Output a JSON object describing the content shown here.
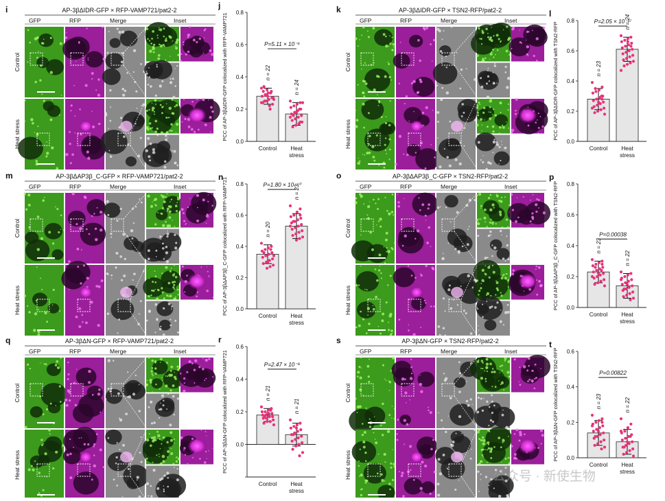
{
  "figure": {
    "panels_micro": [
      {
        "id": "i",
        "letter": "i",
        "title": "AP-3βΔIDR-GFP × RFP-VAMP721/pat2-2",
        "col_labels": [
          "GFP",
          "RFP",
          "Merge",
          "Inset"
        ],
        "row_labels": [
          "Control",
          "Heat stress"
        ],
        "palette": "green"
      },
      {
        "id": "k",
        "letter": "k",
        "title": "AP-3βΔIDR-GFP × TSN2-RFP/pat2-2",
        "col_labels": [
          "GFP",
          "RFP",
          "Merge",
          "Inset"
        ],
        "row_labels": [
          "Control",
          "Heat stress"
        ],
        "palette": "green"
      },
      {
        "id": "m",
        "letter": "m",
        "title": "AP-3βΔAP3β_C-GFP × RFP-VAMP721/pat2-2",
        "col_labels": [
          "GFP",
          "RFP",
          "Merge",
          "Inset"
        ],
        "row_labels": [
          "Control",
          "Heat stress"
        ],
        "palette": "green"
      },
      {
        "id": "o",
        "letter": "o",
        "title": "AP-3βΔAP3β_C-GFP × TSN2-RFP/pat2-2",
        "col_labels": [
          "GFP",
          "RFP",
          "Merge",
          "Inset"
        ],
        "row_labels": [
          "Control",
          "Heat stress"
        ],
        "palette": "green"
      },
      {
        "id": "q",
        "letter": "q",
        "title": "AP-3βΔN-GFP × RFP-VAMP721/pat2-2",
        "col_labels": [
          "GFP",
          "RFP",
          "Merge",
          "Inset"
        ],
        "row_labels": [
          "Control",
          "Heat stress"
        ],
        "palette": "green"
      },
      {
        "id": "s",
        "letter": "s",
        "title": "AP-3βΔN-GFP × TSN2-RFP/pat2-2",
        "col_labels": [
          "GFP",
          "RFP",
          "Merge",
          "Inset"
        ],
        "row_labels": [
          "Control",
          "Heat stress"
        ],
        "palette": "green"
      }
    ],
    "watermark": "公众号 · 新使生物"
  },
  "chart_data": [
    {
      "id": "j",
      "letter": "j",
      "type": "bar",
      "categories": [
        "Control",
        "Heat stress"
      ],
      "values": [
        0.28,
        0.17
      ],
      "errors": [
        0.05,
        0.07
      ],
      "ylabel": "PCC of AP-3βΔIDR-GFP colocalized with RFP-VAMP721",
      "ylim": [
        0,
        0.8
      ],
      "yticks": [
        "0.0",
        "0.2",
        "0.4",
        "0.6",
        "0.8"
      ],
      "p_value": "P=5.11 × 10⁻⁶",
      "n_labels": [
        "n = 22",
        "n = 24"
      ],
      "points": [
        [
          0.33,
          0.31,
          0.3,
          0.29,
          0.28,
          0.27,
          0.26,
          0.25,
          0.24,
          0.23,
          0.22,
          0.29,
          0.31,
          0.27,
          0.2,
          0.32,
          0.34,
          0.26,
          0.3,
          0.28,
          0.25,
          0.24
        ],
        [
          0.25,
          0.24,
          0.23,
          0.22,
          0.21,
          0.2,
          0.19,
          0.18,
          0.17,
          0.16,
          0.15,
          0.14,
          0.13,
          0.12,
          0.11,
          0.1,
          0.09,
          0.24,
          0.2,
          0.18,
          0.16,
          0.15,
          0.12,
          0.19
        ]
      ]
    },
    {
      "id": "l",
      "letter": "l",
      "type": "bar",
      "categories": [
        "Control",
        "Heat stress"
      ],
      "values": [
        0.28,
        0.61
      ],
      "errors": [
        0.07,
        0.08
      ],
      "ylabel": "PCC of AP-3βΔIDR-GFP colocalized with TSN2-RFP",
      "ylim": [
        0,
        0.8
      ],
      "yticks": [
        "0.0",
        "0.2",
        "0.4",
        "0.6",
        "0.8"
      ],
      "p_value": "P=2.05 × 10⁻¹⁷",
      "n_labels": [
        "n = 23",
        "n = 24"
      ],
      "points": [
        [
          0.39,
          0.36,
          0.34,
          0.33,
          0.32,
          0.3,
          0.29,
          0.28,
          0.27,
          0.26,
          0.25,
          0.24,
          0.23,
          0.22,
          0.21,
          0.2,
          0.19,
          0.18,
          0.3,
          0.26,
          0.35,
          0.22,
          0.28
        ],
        [
          0.7,
          0.69,
          0.68,
          0.67,
          0.66,
          0.65,
          0.64,
          0.63,
          0.62,
          0.61,
          0.6,
          0.59,
          0.58,
          0.57,
          0.56,
          0.55,
          0.54,
          0.53,
          0.52,
          0.51,
          0.5,
          0.47,
          0.63,
          0.66
        ]
      ]
    },
    {
      "id": "n",
      "letter": "n",
      "type": "bar",
      "categories": [
        "Control",
        "Heat stress"
      ],
      "values": [
        0.35,
        0.53
      ],
      "errors": [
        0.06,
        0.08
      ],
      "ylabel": "PCC of AP-3βΔAP3β_C-GFP colocalized with RFP-VAMP721",
      "ylim": [
        0,
        0.8
      ],
      "yticks": [
        "0.0",
        "0.2",
        "0.4",
        "0.6",
        "0.8"
      ],
      "p_value": "P=1.80 × 10⁻¹⁰",
      "n_labels": [
        "n = 20",
        "n = 23"
      ],
      "points": [
        [
          0.42,
          0.4,
          0.39,
          0.38,
          0.37,
          0.36,
          0.35,
          0.34,
          0.33,
          0.32,
          0.31,
          0.3,
          0.29,
          0.28,
          0.27,
          0.26,
          0.36,
          0.34,
          0.38,
          0.3
        ],
        [
          0.66,
          0.64,
          0.62,
          0.6,
          0.59,
          0.58,
          0.57,
          0.56,
          0.55,
          0.54,
          0.53,
          0.52,
          0.51,
          0.5,
          0.49,
          0.48,
          0.47,
          0.46,
          0.45,
          0.44,
          0.56,
          0.53,
          0.6
        ]
      ]
    },
    {
      "id": "p",
      "letter": "p",
      "type": "bar",
      "categories": [
        "Control",
        "Heat stress"
      ],
      "values": [
        0.23,
        0.14
      ],
      "errors": [
        0.07,
        0.08
      ],
      "ylabel": "PCC of AP-3βΔAP3β_C-GFP colocalized with TSN2-RFP",
      "ylim": [
        0,
        0.8
      ],
      "yticks": [
        "0.0",
        "0.2",
        "0.4",
        "0.6",
        "0.8"
      ],
      "p_value": "P=0.00038",
      "n_labels": [
        "n = 23",
        "n = 22"
      ],
      "points": [
        [
          0.31,
          0.3,
          0.29,
          0.28,
          0.27,
          0.26,
          0.25,
          0.24,
          0.23,
          0.22,
          0.21,
          0.2,
          0.19,
          0.18,
          0.17,
          0.16,
          0.15,
          0.14,
          0.24,
          0.22,
          0.26,
          0.2,
          0.28
        ],
        [
          0.23,
          0.22,
          0.21,
          0.2,
          0.19,
          0.18,
          0.17,
          0.16,
          0.15,
          0.14,
          0.13,
          0.12,
          0.11,
          0.1,
          0.09,
          0.08,
          0.07,
          0.06,
          0.05,
          0.15,
          0.12,
          0.18
        ]
      ]
    },
    {
      "id": "r",
      "letter": "r",
      "type": "bar",
      "categories": [
        "Control",
        "Heat stress"
      ],
      "values": [
        0.18,
        0.06
      ],
      "errors": [
        0.04,
        0.07
      ],
      "ylabel": "PCC of AP-3βΔN-GFP colocalized with RFP-VAMP721",
      "ylim": [
        -0.2,
        0.6
      ],
      "yticks": [
        "",
        "0.0",
        "0.2",
        "0.4",
        "0.6"
      ],
      "p_value": "P=2.47 × 10⁻⁸",
      "n_labels": [
        "n = 21",
        "n = 21"
      ],
      "points": [
        [
          0.23,
          0.22,
          0.21,
          0.2,
          0.2,
          0.19,
          0.19,
          0.18,
          0.18,
          0.17,
          0.17,
          0.16,
          0.16,
          0.15,
          0.14,
          0.14,
          0.13,
          0.12,
          0.21,
          0.19,
          0.17
        ],
        [
          0.15,
          0.13,
          0.12,
          0.11,
          0.1,
          0.09,
          0.08,
          0.07,
          0.06,
          0.05,
          0.04,
          0.03,
          0.02,
          0.01,
          0.0,
          -0.01,
          -0.03,
          -0.05,
          -0.07,
          0.1,
          0.06
        ]
      ]
    },
    {
      "id": "t",
      "letter": "t",
      "type": "bar",
      "categories": [
        "Control",
        "Heat stress"
      ],
      "values": [
        0.14,
        0.09
      ],
      "errors": [
        0.07,
        0.07
      ],
      "ylabel": "PCC of AP-3βΔN-GFP colocalized with TSN2-RFP",
      "ylim": [
        0,
        0.6
      ],
      "yticks": [
        "0.0",
        "0.2",
        "0.4",
        "0.6"
      ],
      "p_value": "P=0.00822",
      "n_labels": [
        "n = 23",
        "n = 22"
      ],
      "points": [
        [
          0.24,
          0.22,
          0.21,
          0.2,
          0.19,
          0.18,
          0.17,
          0.16,
          0.15,
          0.14,
          0.13,
          0.12,
          0.11,
          0.1,
          0.09,
          0.08,
          0.07,
          0.06,
          0.05,
          0.15,
          0.12,
          0.18,
          0.2
        ],
        [
          0.22,
          0.19,
          0.17,
          0.15,
          0.14,
          0.13,
          0.12,
          0.11,
          0.1,
          0.09,
          0.08,
          0.07,
          0.06,
          0.05,
          0.04,
          0.03,
          0.02,
          0.01,
          0.12,
          0.09,
          0.06,
          0.15
        ]
      ]
    }
  ]
}
